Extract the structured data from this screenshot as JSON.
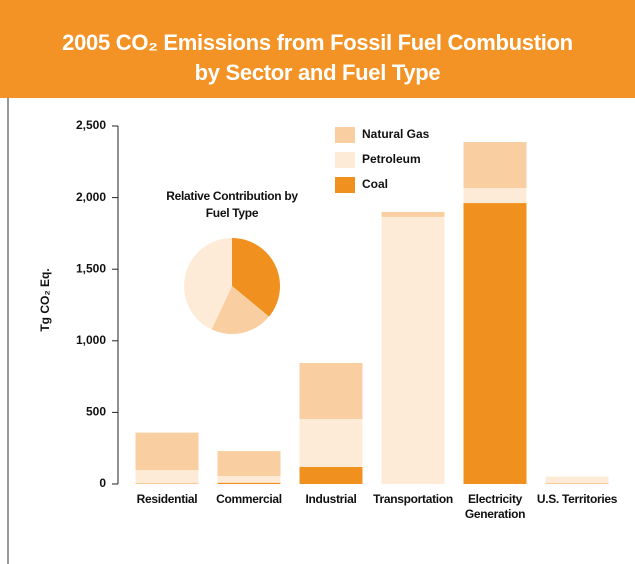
{
  "chart_data": [
    {
      "type": "stacked_bar",
      "title": [
        "2005 CO₂ Emissions from Fossil Fuel Combustion",
        "by Sector and Fuel Type"
      ],
      "ylabel": "Tg CO₂ Eq.",
      "categories": [
        "Residential",
        "Commercial",
        "Industrial",
        "Transportation",
        "Electricity Generation",
        "U.S. Territories"
      ],
      "series": [
        {
          "name": "Natural Gas",
          "color": "#f9cfa1",
          "values": [
            262,
            174,
            391,
            35,
            321,
            2
          ]
        },
        {
          "name": "Petroleum",
          "color": "#fdebd8",
          "values": [
            94,
            47,
            335,
            1865,
            105,
            45
          ]
        },
        {
          "name": "Coal",
          "color": "#f0901e",
          "values": [
            3,
            9,
            119,
            0,
            1962,
            3
          ]
        }
      ],
      "ylim": [
        0,
        2500
      ],
      "yticks": [
        0,
        500,
        {
          "value": 1000,
          "label": "1,000"
        },
        {
          "value": 1500,
          "label": "1,500"
        },
        {
          "value": 2000,
          "label": "2,000"
        },
        {
          "value": 2500,
          "label": "2,500"
        }
      ]
    },
    {
      "type": "pie",
      "title": "Relative Contribution by Fuel Type",
      "values": [
        36,
        21,
        43
      ],
      "colors": [
        "#f0901e",
        "#f9cfa1",
        "#fdebd8"
      ]
    }
  ]
}
